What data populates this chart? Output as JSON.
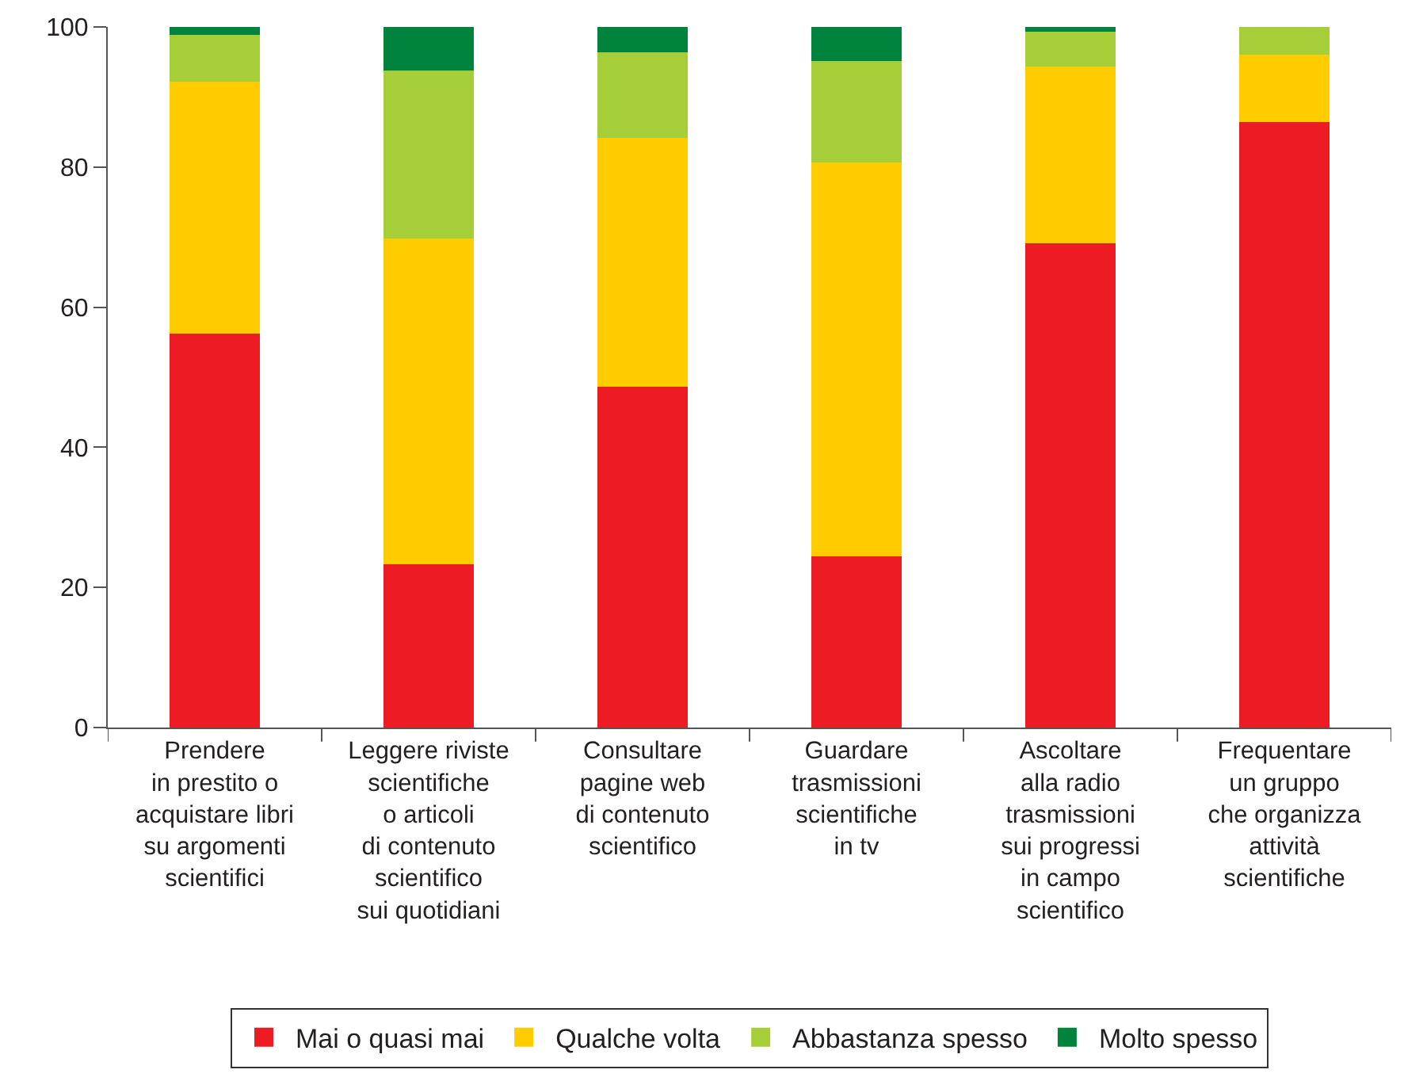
{
  "chart_data": {
    "type": "bar",
    "stacked": true,
    "categories": [
      "Prendere\nin prestito o\nacquistare libri\nsu argomenti\nscientifici",
      "Leggere riviste\nscientifiche\no articoli\ndi contenuto\nscientifico\nsui quotidiani",
      "Consultare\npagine web\ndi contenuto\nscientifico",
      "Guardare\ntrasmissioni\nscientifiche\nin tv",
      "Ascoltare\nalla radio\ntrasmissioni\nsui progressi\nin campo\nscientifico",
      "Frequentare\nun gruppo\nche organizza\nattività\nscientifiche"
    ],
    "series": [
      {
        "name": "Mai o quasi mai",
        "color": "#ed1c24",
        "values": [
          56.2,
          23.3,
          48.7,
          24.4,
          69.1,
          86.4
        ]
      },
      {
        "name": "Qualche volta",
        "color": "#ffcc00",
        "values": [
          36.0,
          46.5,
          35.5,
          56.3,
          25.3,
          9.6
        ]
      },
      {
        "name": "Abbastanza spesso",
        "color": "#a6ce39",
        "values": [
          6.7,
          24.0,
          12.2,
          14.4,
          4.9,
          4.0
        ]
      },
      {
        "name": "Molto spesso",
        "color": "#00843d",
        "values": [
          1.1,
          6.2,
          3.6,
          4.9,
          0.7,
          0
        ]
      }
    ],
    "ylim": [
      0,
      100
    ],
    "yticks": [
      0,
      20,
      40,
      60,
      80,
      100
    ],
    "legend": "bottom"
  }
}
